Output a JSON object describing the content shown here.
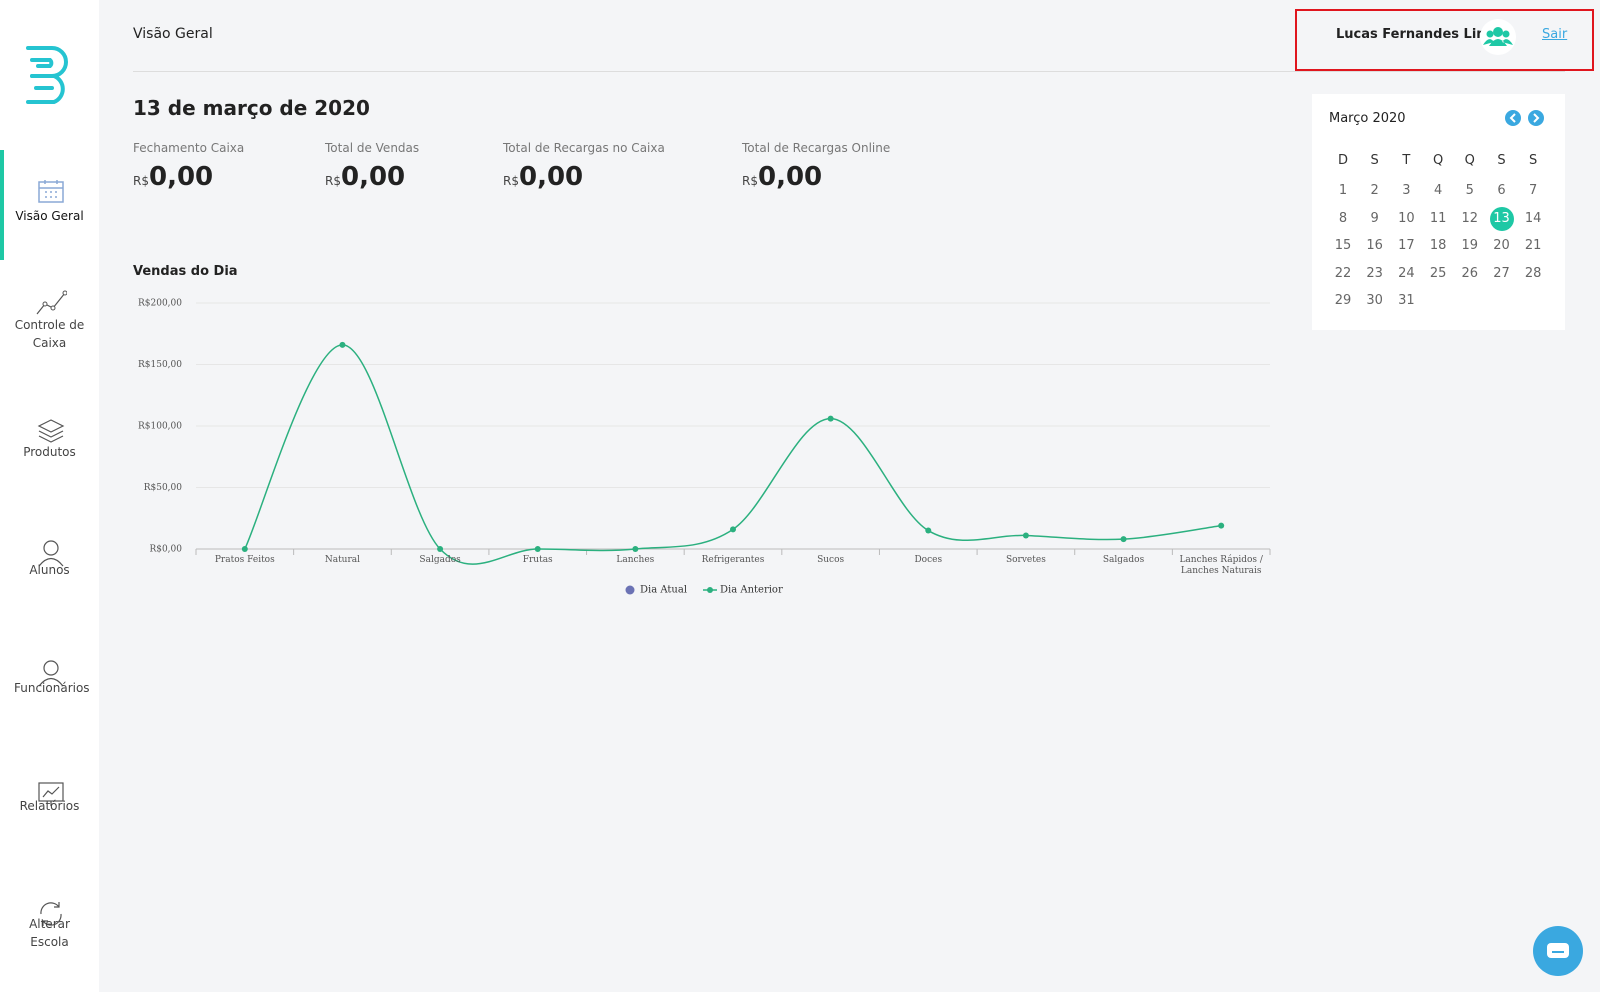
{
  "header": {
    "title": "Visão Geral",
    "user": "Lucas Fernandes Lima",
    "logout": "Sair"
  },
  "sidebar": {
    "active": 0,
    "items": [
      "Visão Geral",
      "Controle de Caixa",
      "Produtos",
      "Alunos",
      "Funcionários",
      "Relatórios",
      "Alterar Escola"
    ]
  },
  "date": "13 de março de 2020",
  "stats": [
    {
      "label": "Fechamento Caixa",
      "currency": "R$",
      "value": "0,00"
    },
    {
      "label": "Total de Vendas",
      "currency": "R$",
      "value": "0,00"
    },
    {
      "label": "Total de Recargas no Caixa",
      "currency": "R$",
      "value": "0,00"
    },
    {
      "label": "Total de Recargas Online",
      "currency": "R$",
      "value": "0,00"
    }
  ],
  "chart": {
    "type": "line",
    "title": "Vendas do Dia",
    "categories": [
      "Pratos Feitos",
      "Natural",
      "Salgados",
      "Frutas",
      "Lanches",
      "Refrigerantes",
      "Sucos",
      "Doces",
      "Sorvetes",
      "Salgados",
      "Lanches Rápidos / Lanches Naturais"
    ],
    "series": [
      {
        "name": "Dia Atual",
        "color": "#6b72b4",
        "values": [
          null,
          null,
          null,
          null,
          null,
          null,
          null,
          null,
          null,
          null,
          null
        ]
      },
      {
        "name": "Dia Anterior",
        "color": "#2bb07f",
        "values": [
          0,
          166,
          0,
          0,
          0,
          16,
          106,
          15,
          11,
          8,
          19
        ]
      }
    ],
    "ylim": [
      0,
      200
    ],
    "yticks": [
      {
        "value": 0,
        "label": "R$0,00"
      },
      {
        "value": 50,
        "label": "R$50,00"
      },
      {
        "value": 100,
        "label": "R$100,00"
      },
      {
        "value": 150,
        "label": "R$150,00"
      },
      {
        "value": 200,
        "label": "R$200,00"
      }
    ],
    "grid": true,
    "legend": "bottom"
  },
  "calendar": {
    "month": "Março 2020",
    "weekdays": [
      "D",
      "S",
      "T",
      "Q",
      "Q",
      "S",
      "S"
    ],
    "days": [
      1,
      2,
      3,
      4,
      5,
      6,
      7,
      8,
      9,
      10,
      11,
      12,
      13,
      14,
      15,
      16,
      17,
      18,
      19,
      20,
      21,
      22,
      23,
      24,
      25,
      26,
      27,
      28,
      29,
      30,
      31
    ],
    "selected": 13
  }
}
